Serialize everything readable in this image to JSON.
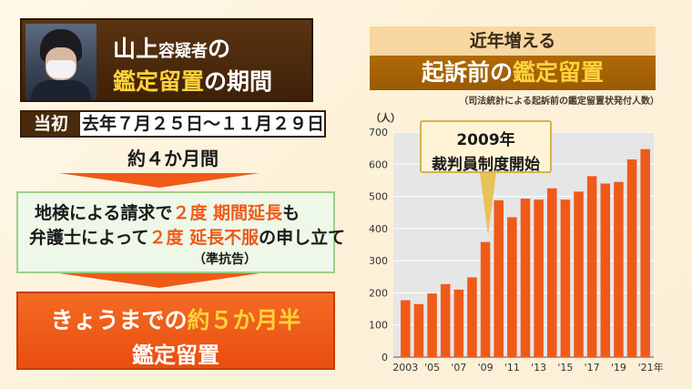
{
  "header": {
    "name_line": {
      "surname": "山上",
      "suffix": "容疑者",
      "particle": "の"
    },
    "period_line": {
      "highlight": "鑑定留置",
      "rest": "の期間"
    }
  },
  "initial": {
    "label": "当初",
    "dates": "去年７月２５日～１１月２９日"
  },
  "approx_duration": "約４か月間",
  "extension": {
    "line1": {
      "a": "地検による請求で",
      "b": "２度 期間延長",
      "c": "も"
    },
    "line2": {
      "a": "弁護士によって",
      "b": "２度 延長不服",
      "c": "の申し立て"
    },
    "line3": "（準抗告）"
  },
  "result": {
    "line1": {
      "a": "きょうまでの",
      "b": "約５か月半"
    },
    "line2": "鑑定留置"
  },
  "chart_header": {
    "tag": "近年増える",
    "title_a": "起訴前の",
    "title_b": "鑑定留置",
    "subtitle": "（司法統計による起訴前の鑑定留置状発付人数）"
  },
  "callout": {
    "line1": "2009年",
    "line2": "裁判員制度開始"
  },
  "colors": {
    "bar": "#f05a19",
    "plot_bg": "#e6e6e6",
    "accent_yellow": "#ffd23a"
  },
  "chart_data": {
    "type": "bar",
    "y_unit": "（人）",
    "ylim": [
      0,
      700
    ],
    "y_ticks": [
      "0",
      "100",
      "200",
      "300",
      "400",
      "500",
      "600",
      "700"
    ],
    "x_tick_labels": [
      "2003",
      "'05",
      "'07",
      "'09",
      "'11",
      "'13",
      "'15",
      "'17",
      "'19",
      "'21年"
    ],
    "years": [
      2003,
      2004,
      2005,
      2006,
      2007,
      2008,
      2009,
      2010,
      2011,
      2012,
      2013,
      2014,
      2015,
      2016,
      2017,
      2018,
      2019,
      2020,
      2021
    ],
    "values": [
      177,
      165,
      198,
      227,
      210,
      248,
      358,
      488,
      435,
      493,
      490,
      525,
      490,
      515,
      563,
      540,
      545,
      615,
      647
    ],
    "grid": "horizontal"
  }
}
